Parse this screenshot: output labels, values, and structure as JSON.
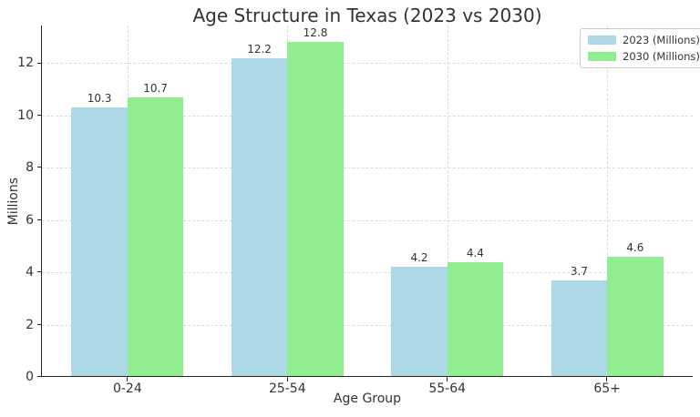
{
  "chart_data": {
    "type": "bar",
    "title": "Age Structure in Texas (2023 vs 2030)",
    "xlabel": "Age Group",
    "ylabel": "Millions",
    "categories": [
      "0-24",
      "25-54",
      "55-64",
      "65+"
    ],
    "series": [
      {
        "name": "2023 (Millions)",
        "color": "#ADD8E6",
        "values": [
          10.3,
          12.2,
          4.2,
          3.7
        ]
      },
      {
        "name": "2030 (Millions)",
        "color": "#90EE90",
        "values": [
          10.7,
          12.8,
          4.4,
          4.6
        ]
      }
    ],
    "bar_value_labels": [
      [
        "10.3",
        "12.2",
        "4.2",
        "3.7"
      ],
      [
        "10.7",
        "12.8",
        "4.4",
        "4.6"
      ]
    ],
    "y_ticks": [
      "0",
      "2",
      "4",
      "6",
      "8",
      "10",
      "12"
    ],
    "ylim": [
      0,
      13.44
    ],
    "bar_width": 0.35,
    "grid": "dashed-both-axes",
    "legend_position": "upper right",
    "colors": {
      "text": "#333333",
      "spine": "#262626",
      "grid": "#dcdcdc",
      "background": "#ffffff"
    }
  }
}
